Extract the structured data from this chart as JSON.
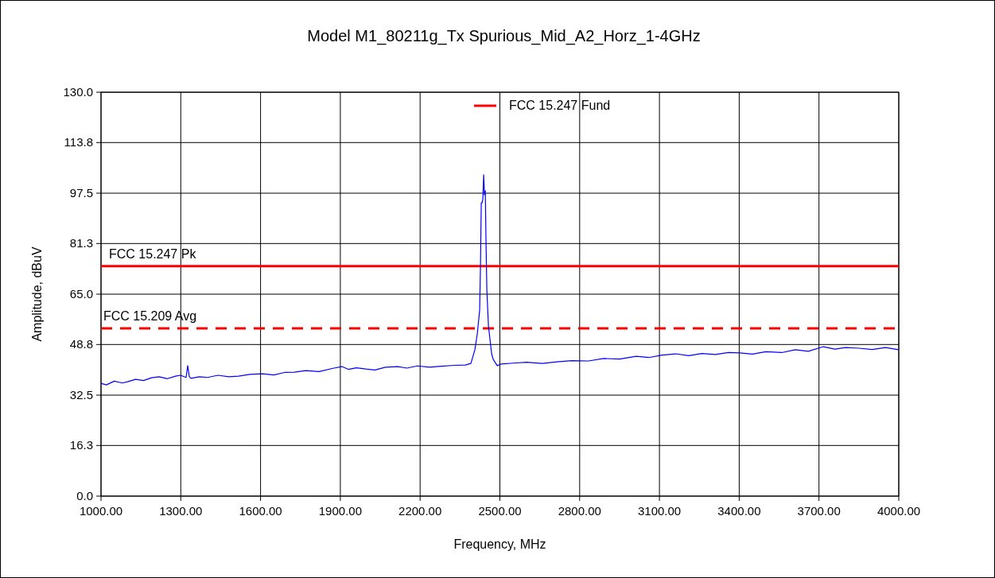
{
  "chart_data": {
    "type": "line",
    "title": "Model M1_80211g_Tx Spurious_Mid_A2_Horz_1-4GHz",
    "xlabel": "Frequency, MHz",
    "ylabel": "Amplitude, dBuV",
    "xlim": [
      1000,
      4000
    ],
    "ylim": [
      0,
      130
    ],
    "xticks": [
      {
        "value": 1000,
        "label": "1000.00"
      },
      {
        "value": 1300,
        "label": "1300.00"
      },
      {
        "value": 1600,
        "label": "1600.00"
      },
      {
        "value": 1900,
        "label": "1900.00"
      },
      {
        "value": 2200,
        "label": "2200.00"
      },
      {
        "value": 2500,
        "label": "2500.00"
      },
      {
        "value": 2800,
        "label": "2800.00"
      },
      {
        "value": 3100,
        "label": "3100.00"
      },
      {
        "value": 3400,
        "label": "3400.00"
      },
      {
        "value": 3700,
        "label": "3700.00"
      },
      {
        "value": 4000,
        "label": "4000.00"
      }
    ],
    "yticks": [
      {
        "value": 0,
        "label": "0.0"
      },
      {
        "value": 16.3,
        "label": "16.3"
      },
      {
        "value": 32.5,
        "label": "32.5"
      },
      {
        "value": 48.8,
        "label": "48.8"
      },
      {
        "value": 65,
        "label": "65.0"
      },
      {
        "value": 81.3,
        "label": "81.3"
      },
      {
        "value": 97.5,
        "label": "97.5"
      },
      {
        "value": 113.8,
        "label": "113.8"
      },
      {
        "value": 130,
        "label": "130.0"
      }
    ],
    "grid": true,
    "legend": "top",
    "marker": "none",
    "series": [
      {
        "color": "#0000ff",
        "x": [
          1000,
          1020,
          1050,
          1080,
          1100,
          1130,
          1160,
          1190,
          1218,
          1250,
          1280,
          1299,
          1320,
          1326,
          1332,
          1338,
          1370,
          1400,
          1440,
          1480,
          1517,
          1560,
          1607,
          1650,
          1690,
          1727,
          1770,
          1820,
          1876,
          1906,
          1930,
          1960,
          1996,
          2030,
          2070,
          2116,
          2150,
          2190,
          2235,
          2280,
          2330,
          2370,
          2391,
          2406,
          2415,
          2424,
          2427,
          2430,
          2433,
          2436,
          2439,
          2442,
          2445,
          2448,
          2451,
          2457,
          2469,
          2475,
          2490,
          2505,
          2550,
          2600,
          2660,
          2714,
          2770,
          2834,
          2890,
          2950,
          3013,
          3060,
          3110,
          3162,
          3210,
          3260,
          3310,
          3360,
          3402,
          3450,
          3500,
          3560,
          3611,
          3660,
          3716,
          3760,
          3800,
          3850,
          3900,
          3950,
          4000
        ],
        "values": [
          36.3,
          35.8,
          37,
          36.4,
          36.8,
          37.6,
          37.2,
          38.1,
          38.4,
          37.8,
          38.6,
          38.9,
          38.2,
          42,
          38.5,
          37.9,
          38.4,
          38.2,
          38.9,
          38.4,
          38.6,
          39.2,
          39.4,
          39,
          39.8,
          39.9,
          40.4,
          40.1,
          41.2,
          41.7,
          40.8,
          41.3,
          40.9,
          40.6,
          41.5,
          41.7,
          41.2,
          41.9,
          41.5,
          41.8,
          42.1,
          42.2,
          42.7,
          47.1,
          52.2,
          59.9,
          74,
          94.4,
          94.4,
          95.7,
          103.4,
          97,
          98.3,
          81.1,
          66.3,
          54.8,
          45.8,
          44,
          42,
          42.5,
          42.8,
          43.1,
          42.7,
          43.2,
          43.6,
          43.5,
          44.3,
          44.1,
          45,
          44.6,
          45.4,
          45.8,
          45.2,
          45.9,
          45.6,
          46.2,
          46.1,
          45.7,
          46.5,
          46.2,
          47.1,
          46.6,
          48.1,
          47.3,
          47.8,
          47.6,
          47.2,
          47.8,
          47.1
        ]
      },
      {
        "name": "FCC 15.247 Fund",
        "color": "#ff0000"
      }
    ],
    "ref_lines": [
      {
        "axis": "y",
        "value": 74,
        "label": "FCC 15.247 Pk",
        "color": "#ff0000",
        "line_style": "solid"
      },
      {
        "axis": "y",
        "value": 54,
        "label": "FCC 15.209 Avg",
        "color": "#ff0000",
        "line_style": "dashed"
      }
    ]
  }
}
